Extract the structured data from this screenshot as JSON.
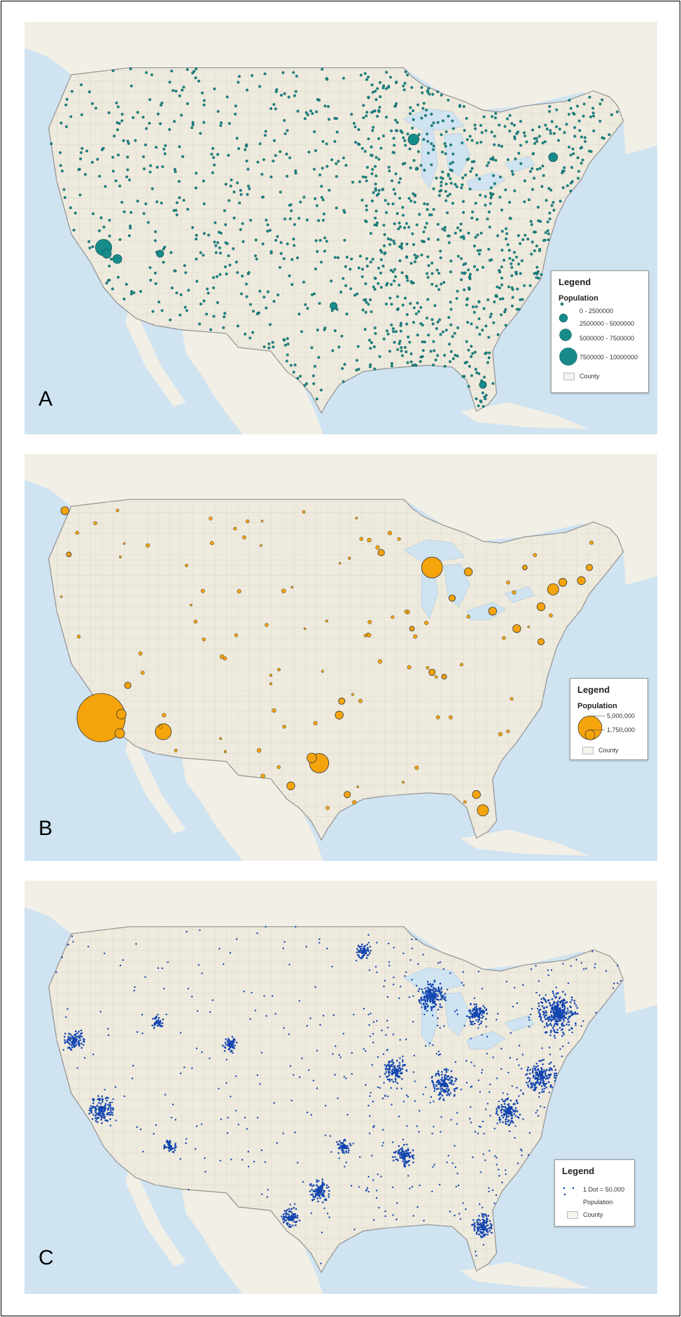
{
  "panels": [
    {
      "label": "A",
      "legend": {
        "title": "Legend",
        "subtitle": "Population",
        "items": [
          "0 - 2500000",
          "2500000 - 5000000",
          "5000000 - 7500000",
          "7500000 - 10000000"
        ],
        "county": "County"
      },
      "symbol_color": "#178a8a"
    },
    {
      "label": "B",
      "legend": {
        "title": "Legend",
        "subtitle": "Population",
        "items": [
          "5,000,000",
          "1,750,000"
        ],
        "county": "County"
      },
      "symbol_color": "#f6a40c"
    },
    {
      "label": "C",
      "legend": {
        "title": "Legend",
        "items": [
          "1 Dot = 50,000",
          "Population"
        ],
        "county": "County"
      },
      "symbol_color": "#1446b0"
    }
  ],
  "colors": {
    "water": "#cfe3f1",
    "land": "#f1efe6",
    "us_land": "#eeeadd",
    "border": "#8f8f8f"
  },
  "icons": [
    "proportional-circle-icon",
    "dot-icon",
    "county-polygon-icon"
  ]
}
